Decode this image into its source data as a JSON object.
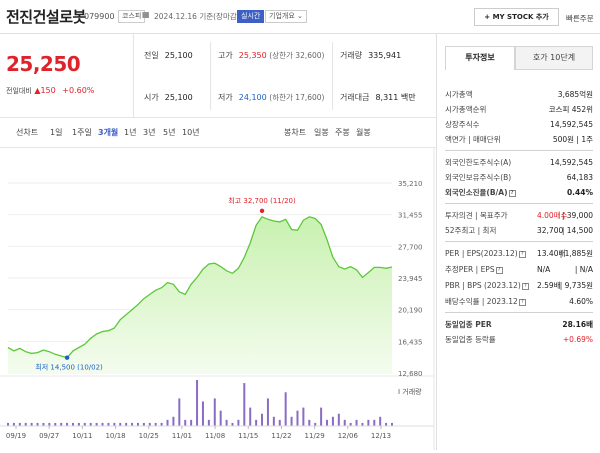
{
  "header": {
    "name": "전진건설로봇",
    "code": "079900",
    "market": "코스피",
    "date": "2024.12.16 기준(장마감)",
    "live_label": "실시간",
    "corp_label": "기업개요",
    "mystock_label": "+ MY STOCK 추가",
    "buy_label": "빠른주문"
  },
  "price": {
    "current": "25,250",
    "change_label": "전일대비",
    "change": "▲150",
    "change_pct": "+0.60%"
  },
  "stats": {
    "prev_label": "전일",
    "prev": "25,100",
    "open_label": "시가",
    "open": "25,100",
    "high_label": "고가",
    "high": "25,350",
    "upper_limit": "(상한가 32,600)",
    "low_label": "저가",
    "low": "24,100",
    "lower_limit": "(하한가 17,600)",
    "volume_label": "거래량",
    "volume": "335,941",
    "amount_label": "거래대금",
    "amount": "8,311 백만"
  },
  "chart_tabs": [
    "선차트",
    "1일",
    "1주일",
    "3개월",
    "1년",
    "3년",
    "5년",
    "10년"
  ],
  "chart_tabs_right": [
    "봉차트",
    "일봉",
    "주봉",
    "월봉"
  ],
  "active_tab": "3개월",
  "chart_data": {
    "type": "area",
    "x_labels": [
      "09/19",
      "09/27",
      "10/11",
      "10/18",
      "10/25",
      "11/01",
      "11/08",
      "11/15",
      "11/22",
      "11/29",
      "12/06",
      "12/13"
    ],
    "y_ticks": [
      "35,210",
      "31,455",
      "27,700",
      "23,945",
      "20,190",
      "16,435",
      "12,680"
    ],
    "ylim": [
      12680,
      35210
    ],
    "values": [
      15700,
      15300,
      15600,
      15200,
      15000,
      15100,
      15400,
      15200,
      14900,
      14700,
      14500,
      15300,
      15700,
      16100,
      16800,
      17300,
      17600,
      17700,
      18000,
      19000,
      19600,
      20200,
      20800,
      21500,
      22000,
      22500,
      22800,
      23400,
      23200,
      22300,
      22000,
      23200,
      24000,
      25000,
      25600,
      25700,
      25300,
      24800,
      24500,
      25100,
      26400,
      28100,
      30200,
      31200,
      30900,
      30700,
      30600,
      30900,
      29700,
      29600,
      30800,
      31200,
      31000,
      30300,
      28500,
      26400,
      25300,
      25000,
      25300,
      24900,
      24000,
      24600,
      25200,
      25200,
      25100,
      25250
    ],
    "volumes": [
      1,
      1,
      1,
      1,
      1,
      1,
      1,
      1,
      1,
      1,
      1,
      1,
      1,
      1,
      1,
      1,
      1,
      1,
      1,
      1,
      1,
      1,
      1,
      1,
      1,
      1,
      1,
      2,
      3,
      9,
      2,
      2,
      15,
      8,
      2,
      9,
      5,
      2,
      1,
      2,
      14,
      6,
      2,
      4,
      9,
      3,
      2,
      11,
      3,
      5,
      6,
      2,
      1,
      6,
      2,
      3,
      4,
      2,
      1,
      2,
      1,
      2,
      2,
      3,
      1,
      1
    ],
    "max_label": "최고 32,700 (11/20)",
    "min_label": "최저 14,500 (10/02)",
    "volume_label": "I 거래량",
    "colors": {
      "line": "#5cc83a",
      "fill_top": "#c8f1b0",
      "fill_bottom": "#f4fcee",
      "volume": "#8a6cc4",
      "max_dot": "#e0222a",
      "min_dot": "#1c5fc9"
    }
  },
  "side": {
    "tab_a": "투자정보",
    "tab_b": "호가 10단계",
    "rows": [
      {
        "k": "시가총액",
        "v": "3,685억원"
      },
      {
        "k": "시가총액순위",
        "v": "코스피 452위"
      },
      {
        "k": "상장주식수",
        "v": "14,592,545"
      },
      {
        "k": "액면가 | 매매단위",
        "v": "500원 | 1주"
      }
    ],
    "rows2": [
      {
        "k": "외국인한도주식수(A)",
        "v": "14,592,545"
      },
      {
        "k": "외국인보유주식수(B)",
        "v": "64,183"
      },
      {
        "k": "외국인소진율(B/A)",
        "v": "0.44%"
      }
    ],
    "rows3": [
      {
        "k": "투자의견 | 목표주가",
        "v1": "4.00매수",
        "v": "| 39,000"
      },
      {
        "k": "52주최고 | 최저",
        "v1": "32,700",
        "v": "| 14,500"
      }
    ],
    "rows4": [
      {
        "k": "PER | EPS(2023.12)",
        "v1": "13.40배",
        "v": "| 1,885원"
      },
      {
        "k": "추정PER | EPS",
        "v1": "N/A",
        "v": "| N/A"
      },
      {
        "k": "PBR | BPS (2023.12)",
        "v1": "2.59배",
        "v": "| 9,735원"
      },
      {
        "k": "배당수익률 | 2023.12",
        "v1": "",
        "v": "4.60%"
      }
    ],
    "rows5": [
      {
        "k": "동일업종 PER",
        "v": "28.16배"
      },
      {
        "k": "동일업종 등락률",
        "v": "+0.69%"
      }
    ]
  }
}
